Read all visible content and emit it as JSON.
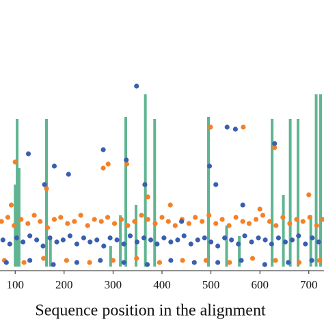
{
  "chart_data": {
    "type": "scatter",
    "xlabel": "Sequence position in the alignment",
    "xlim": [
      69,
      731
    ],
    "xticks": [
      100,
      200,
      300,
      400,
      500,
      600,
      700
    ],
    "ylim": [
      0,
      100
    ],
    "series": [
      {
        "type": "bar",
        "color": "#5fb591",
        "x": [
          100,
          104,
          108,
          164,
          172,
          295,
          315,
          326,
          347,
          366,
          385,
          495,
          532,
          558,
          625,
          648,
          662,
          678,
          704,
          715,
          724
        ],
        "values": [
          40,
          72,
          48,
          72,
          15,
          10,
          25,
          73,
          30,
          84,
          72,
          73,
          20,
          15,
          72,
          35,
          72,
          72,
          25,
          84,
          84
        ]
      },
      {
        "type": "scatter",
        "color": "#f58025",
        "x": [
          72,
          85,
          98,
          112,
          126,
          139,
          151,
          166,
          180,
          193,
          207,
          221,
          234,
          248,
          262,
          276,
          289,
          303,
          317,
          330,
          344,
          358,
          371,
          386,
          400,
          413,
          427,
          441,
          455,
          468,
          482,
          496,
          510,
          523,
          537,
          551,
          565,
          578,
          592,
          606,
          620,
          633,
          647,
          661,
          675,
          688,
          702,
          716,
          728,
          78,
          118,
          158,
          205,
          252,
          300,
          348,
          395,
          442,
          490,
          538,
          585,
          632,
          680,
          722,
          100,
          92,
          164,
          280,
          290,
          328,
          371,
          499,
          566,
          630,
          700,
          417,
          600
        ],
        "values": [
          22,
          24,
          20,
          23,
          21,
          25,
          22,
          19,
          23,
          24,
          21,
          22,
          25,
          20,
          23,
          22,
          24,
          21,
          23,
          20,
          22,
          25,
          23,
          21,
          24,
          22,
          20,
          23,
          21,
          24,
          22,
          25,
          21,
          23,
          20,
          24,
          22,
          21,
          23,
          25,
          22,
          20,
          24,
          21,
          23,
          22,
          24,
          20,
          23,
          3,
          2,
          4,
          3,
          2,
          3,
          4,
          2,
          3,
          3,
          2,
          4,
          3,
          2,
          3,
          51,
          30,
          38,
          48,
          50,
          50,
          34,
          68,
          68,
          58,
          35,
          30,
          28
        ]
      },
      {
        "type": "scatter",
        "color": "#3a5fb0",
        "x": [
          75,
          89,
          103,
          116,
          130,
          144,
          157,
          171,
          185,
          198,
          212,
          226,
          240,
          253,
          267,
          281,
          294,
          308,
          322,
          335,
          349,
          363,
          377,
          390,
          404,
          418,
          432,
          445,
          459,
          473,
          487,
          500,
          514,
          528,
          542,
          556,
          569,
          583,
          597,
          611,
          624,
          638,
          652,
          666,
          679,
          693,
          707,
          720,
          82,
          130,
          178,
          226,
          274,
          322,
          370,
          418,
          466,
          514,
          562,
          610,
          658,
          706,
          348,
          127,
          280,
          327,
          180,
          209,
          497,
          533,
          550,
          630,
          510,
          365,
          160,
          565,
          440
        ],
        "values": [
          13,
          11,
          14,
          12,
          15,
          13,
          10,
          14,
          12,
          13,
          15,
          11,
          14,
          12,
          13,
          10,
          14,
          13,
          11,
          15,
          12,
          14,
          13,
          11,
          14,
          12,
          13,
          15,
          11,
          13,
          14,
          12,
          10,
          14,
          13,
          11,
          15,
          12,
          14,
          13,
          11,
          14,
          12,
          13,
          15,
          11,
          14,
          12,
          2,
          3,
          1,
          2,
          3,
          2,
          1,
          3,
          2,
          2,
          3,
          1,
          2,
          3,
          88,
          55,
          57,
          52,
          49,
          45,
          49,
          68,
          67,
          60,
          40,
          40,
          40,
          30,
          22
        ]
      }
    ]
  }
}
